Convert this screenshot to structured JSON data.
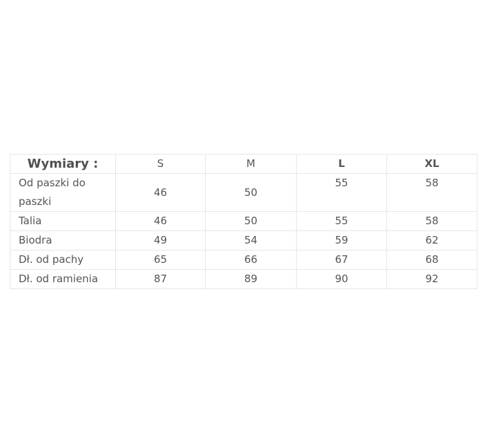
{
  "table": {
    "header": [
      "Wymiary :",
      "S",
      "M",
      "L",
      "XL"
    ],
    "rows": [
      {
        "label": "Od paszki do paszki",
        "values": [
          "46",
          "50",
          "55",
          "58"
        ]
      },
      {
        "label": "Talia",
        "values": [
          "46",
          "50",
          "55",
          "58"
        ]
      },
      {
        "label": "Biodra",
        "values": [
          "49",
          "54",
          "59",
          "62"
        ]
      },
      {
        "label": "Dł. od pachy",
        "values": [
          "65",
          "66",
          "67",
          "68"
        ]
      },
      {
        "label": "Dł. od ramienia",
        "values": [
          "87",
          "89",
          "90",
          "92"
        ]
      }
    ]
  }
}
